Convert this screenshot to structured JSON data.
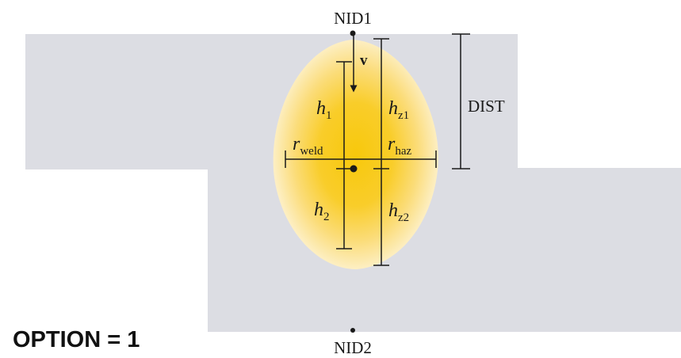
{
  "labels": {
    "nid1": "NID1",
    "nid2": "NID2",
    "dist": "DIST",
    "velocity": "v",
    "h1": {
      "base": "h",
      "sub": "1"
    },
    "h2": {
      "base": "h",
      "sub": "2"
    },
    "hz1": {
      "base": "h",
      "sub": "z1"
    },
    "hz2": {
      "base": "h",
      "sub": "z2"
    },
    "r_weld": {
      "base": "r",
      "sub": "weld"
    },
    "r_haz": {
      "base": "r",
      "sub": "haz"
    }
  },
  "option": "OPTION = 1",
  "colors": {
    "sheet": "#dcdde3",
    "weld_core": "#f6c615",
    "haz_outer": "#fbe7a3",
    "lines": "#1a1a1a"
  }
}
